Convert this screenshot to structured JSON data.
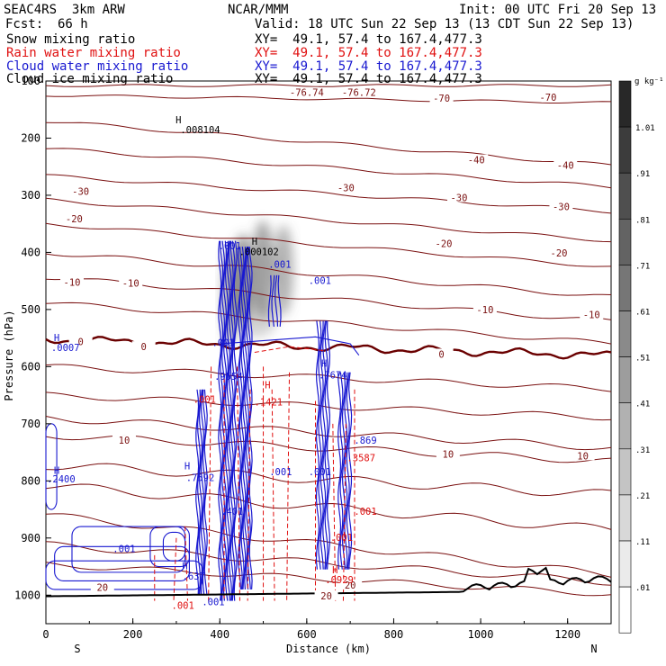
{
  "header": {
    "model": "SEAC4RS  3km ARW",
    "center": "NCAR/MMM",
    "init": "Init: 00 UTC Fri 20 Sep 13",
    "fcst_label": "Fcst:",
    "fcst_value": "66 h",
    "valid": "Valid: 18 UTC Sun 22 Sep 13 (13 CDT Sun 22 Sep 13)"
  },
  "fields": [
    {
      "label": "Snow mixing ratio",
      "xy": "XY=  49.1, 57.4 to 167.4,477.3",
      "color": "#000000"
    },
    {
      "label": "Rain water mixing ratio",
      "xy": "XY=  49.1, 57.4 to 167.4,477.3",
      "color": "#e01010"
    },
    {
      "label": "Cloud water mixing ratio",
      "xy": "XY=  49.1, 57.4 to 167.4,477.3",
      "color": "#1818d0"
    },
    {
      "label": "Cloud ice mixing ratio",
      "xy": "XY=  49.1, 57.4 to 167.4,477.3",
      "color": "#000000"
    }
  ],
  "chart_data": {
    "type": "contour cross-section",
    "xlabel": "Distance (km)",
    "ylabel": "Pressure (hPa)",
    "xlim": [
      0,
      1300
    ],
    "ylim": [
      1050,
      100
    ],
    "x_ticks": [
      0,
      200,
      400,
      600,
      800,
      1000,
      1200
    ],
    "y_ticks": [
      100,
      200,
      300,
      400,
      500,
      600,
      700,
      800,
      900,
      1000
    ],
    "direction_left": "S",
    "direction_right": "N",
    "colorbar": {
      "unit": "g kg⁻¹",
      "levels": [
        "1.01",
        ".91",
        ".81",
        ".71",
        ".61",
        ".51",
        ".41",
        ".31",
        ".21",
        ".11",
        ".01"
      ]
    },
    "temperature_contours": [
      {
        "label": "-76.74",
        "x": 600,
        "p": 120
      },
      {
        "label": "-76.72",
        "x": 720,
        "p": 120
      },
      {
        "label": "-70",
        "x": 910,
        "p": 130
      },
      {
        "label": "-70",
        "x": 1155,
        "p": 128
      },
      {
        "label": "-40",
        "x": 990,
        "p": 238
      },
      {
        "label": "-40",
        "x": 1195,
        "p": 247
      },
      {
        "label": "-30",
        "x": 80,
        "p": 293
      },
      {
        "label": "-30",
        "x": 690,
        "p": 287
      },
      {
        "label": "-30",
        "x": 950,
        "p": 304
      },
      {
        "label": "-30",
        "x": 1185,
        "p": 320
      },
      {
        "label": "-20",
        "x": 65,
        "p": 341
      },
      {
        "label": "-20",
        "x": 915,
        "p": 384
      },
      {
        "label": "-20",
        "x": 1180,
        "p": 401
      },
      {
        "label": "-10",
        "x": 60,
        "p": 452
      },
      {
        "label": "-10",
        "x": 195,
        "p": 454
      },
      {
        "label": "-10",
        "x": 1010,
        "p": 500
      },
      {
        "label": "-10",
        "x": 1255,
        "p": 509
      },
      {
        "label": "0",
        "x": 80,
        "p": 556
      },
      {
        "label": "0",
        "x": 225,
        "p": 565
      },
      {
        "label": "0",
        "x": 910,
        "p": 578
      },
      {
        "label": "10",
        "x": 180,
        "p": 729
      },
      {
        "label": "10",
        "x": 925,
        "p": 753
      },
      {
        "label": "10",
        "x": 1235,
        "p": 756
      },
      {
        "label": "20",
        "x": 130,
        "p": 986
      },
      {
        "label": "20",
        "x": 700,
        "p": 982
      },
      {
        "label": "20",
        "x": 645,
        "p": 1001
      }
    ],
    "extrema_labels": [
      {
        "text": "H",
        "x": 305,
        "p": 174,
        "color": "#000000"
      },
      {
        "text": ".008104",
        "x": 355,
        "p": 191,
        "color": "#000000"
      },
      {
        "text": "H",
        "x": 480,
        "p": 387,
        "color": "#000000"
      },
      {
        "text": ".000102",
        "x": 490,
        "p": 405,
        "color": "#000000"
      },
      {
        "text": ".001",
        "x": 423,
        "p": 395,
        "color": "#1818d0"
      },
      {
        "text": ".001",
        "x": 538,
        "p": 427,
        "color": "#1818d0"
      },
      {
        "text": ".001",
        "x": 630,
        "p": 455,
        "color": "#1818d0"
      },
      {
        "text": "H",
        "x": 25,
        "p": 555,
        "color": "#1818d0"
      },
      {
        "text": ".0007",
        "x": 45,
        "p": 573,
        "color": "#1818d0"
      },
      {
        "text": ".001",
        "x": 408,
        "p": 564,
        "color": "#1818d0"
      },
      {
        "text": ".9554",
        "x": 420,
        "p": 623,
        "color": "#1818d0"
      },
      {
        "text": ".001",
        "x": 365,
        "p": 663,
        "color": "#e01010"
      },
      {
        "text": ".1421",
        "x": 512,
        "p": 668,
        "color": "#e01010"
      },
      {
        "text": "H",
        "x": 510,
        "p": 638,
        "color": "#e01010"
      },
      {
        "text": "H",
        "x": 640,
        "p": 600,
        "color": "#1818d0"
      },
      {
        "text": ".7674",
        "x": 660,
        "p": 621,
        "color": "#1818d0"
      },
      {
        "text": ".869",
        "x": 735,
        "p": 735,
        "color": "#1818d0"
      },
      {
        "text": ".3587",
        "x": 725,
        "p": 766,
        "color": "#e01010"
      },
      {
        "text": "H",
        "x": 325,
        "p": 780,
        "color": "#1818d0"
      },
      {
        "text": ".7592",
        "x": 355,
        "p": 800,
        "color": "#1818d0"
      },
      {
        "text": "H",
        "x": 25,
        "p": 788,
        "color": "#1818d0"
      },
      {
        "text": ".2400",
        "x": 35,
        "p": 803,
        "color": "#1818d0"
      },
      {
        "text": ".001",
        "x": 540,
        "p": 790,
        "color": "#1818d0"
      },
      {
        "text": ".001",
        "x": 630,
        "p": 790,
        "color": "#1818d0"
      },
      {
        "text": ".401",
        "x": 428,
        "p": 859,
        "color": "#1818d0"
      },
      {
        "text": ".001",
        "x": 180,
        "p": 925,
        "color": "#1818d0"
      },
      {
        "text": ".001",
        "x": 735,
        "p": 859,
        "color": "#e01010"
      },
      {
        "text": ".001",
        "x": 680,
        "p": 905,
        "color": "#e01010"
      },
      {
        "text": "H",
        "x": 665,
        "p": 962,
        "color": "#e01010"
      },
      {
        "text": ".0929",
        "x": 675,
        "p": 979,
        "color": "#e01010"
      },
      {
        "text": "H",
        "x": 320,
        "p": 955,
        "color": "#1818d0"
      },
      {
        "text": ".637",
        "x": 340,
        "p": 973,
        "color": "#1818d0"
      },
      {
        "text": ".001",
        "x": 315,
        "p": 1024,
        "color": "#e01010"
      },
      {
        "text": ".001",
        "x": 385,
        "p": 1018,
        "color": "#1818d0"
      }
    ]
  }
}
